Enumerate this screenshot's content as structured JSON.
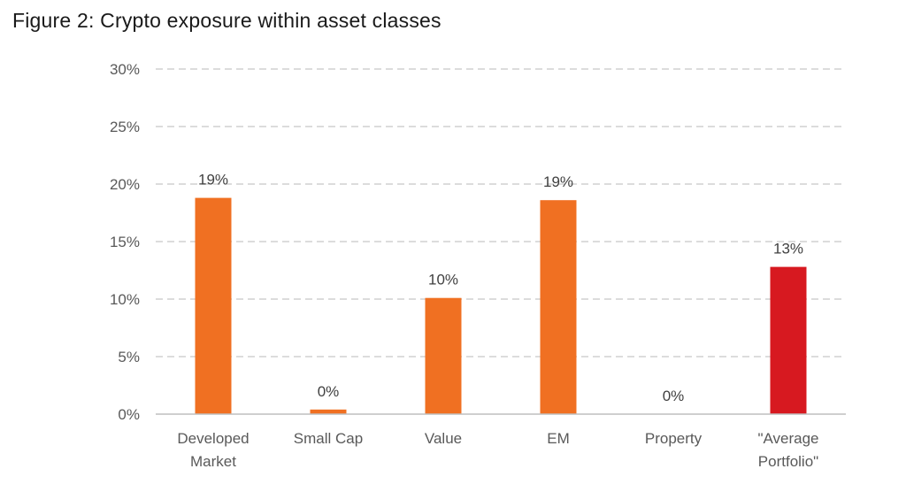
{
  "chart_data": {
    "type": "bar",
    "title": "Figure 2: Crypto exposure within asset classes",
    "categories": [
      [
        "Developed",
        "Market"
      ],
      [
        "Small Cap"
      ],
      [
        "Value"
      ],
      [
        "EM"
      ],
      [
        "Property"
      ],
      [
        "\"Average",
        "Portfolio\""
      ]
    ],
    "values": [
      18.8,
      0.4,
      10.1,
      18.6,
      0.0,
      12.8
    ],
    "data_labels": [
      "19%",
      "0%",
      "10%",
      "19%",
      "0%",
      "13%"
    ],
    "bar_colors": [
      "#F07022",
      "#F07022",
      "#F07022",
      "#F07022",
      "#F07022",
      "#D71920"
    ],
    "ylim": [
      0,
      30
    ],
    "yticks": [
      0,
      5,
      10,
      15,
      20,
      25,
      30
    ],
    "ytick_labels": [
      "0%",
      "5%",
      "10%",
      "15%",
      "20%",
      "25%",
      "30%"
    ],
    "xlabel": "",
    "ylabel": "",
    "grid": true,
    "grid_style": "dashed",
    "legend": "none"
  }
}
